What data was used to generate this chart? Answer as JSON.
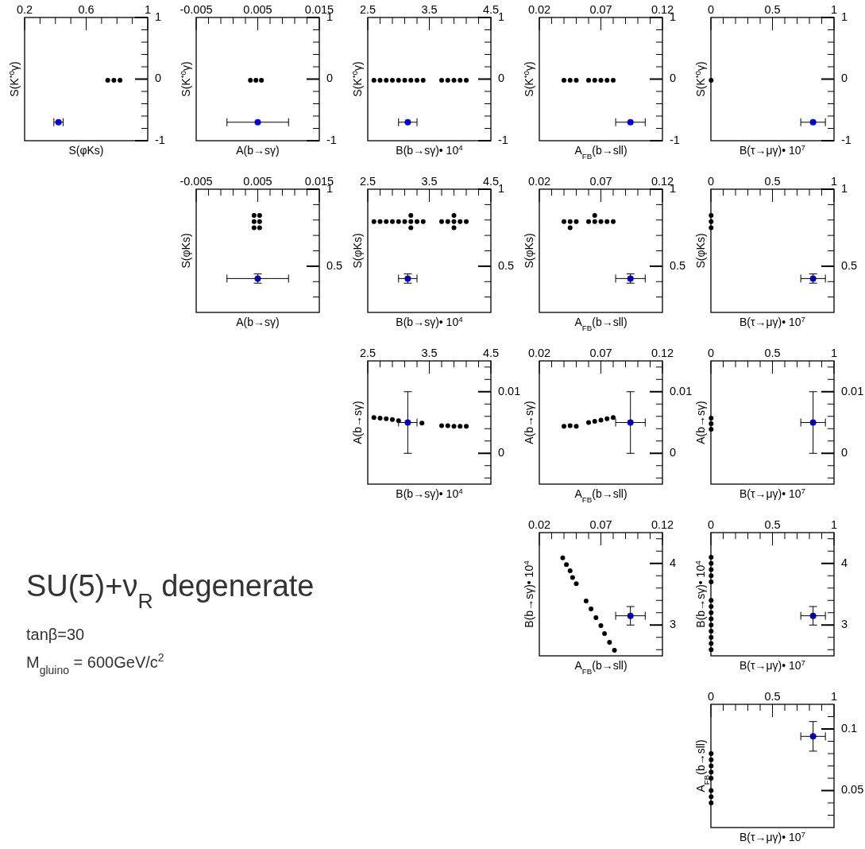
{
  "chart_data": [
    {
      "type": "scatter",
      "marker": "circle",
      "xlabel": "S(φKs)",
      "ylabel": "S(K$^{*0}$γ)",
      "xlim": [
        0.2,
        1
      ],
      "ylim": [
        -1,
        1
      ],
      "xticks": [
        0.2,
        {
          "value": 0.3,
          "label": null
        },
        {
          "value": 0.4,
          "label": null
        },
        {
          "value": 0.5,
          "label": null
        },
        0.6,
        {
          "value": 0.7,
          "label": null
        },
        {
          "value": 0.8,
          "label": null
        },
        {
          "value": 0.9,
          "label": null
        },
        1
      ],
      "yticks": [
        -1,
        {
          "value": -0.8,
          "label": null
        },
        {
          "value": -0.6,
          "label": null
        },
        {
          "value": -0.4,
          "label": null
        },
        {
          "value": -0.2,
          "label": null
        },
        0,
        {
          "value": 0.2,
          "label": null
        },
        {
          "value": 0.4,
          "label": null
        },
        {
          "value": 0.6,
          "label": null
        },
        {
          "value": 0.8,
          "label": null
        },
        1
      ],
      "series": [
        {
          "color": "#000000",
          "x": [
            0.74,
            0.78,
            0.82
          ],
          "values": [
            -0.02,
            -0.02,
            -0.02
          ]
        },
        {
          "color": "#0000ff",
          "x": [
            0.42
          ],
          "values": [
            -0.7
          ],
          "xerrors": [
            0.03
          ]
        }
      ]
    },
    {
      "type": "scatter",
      "marker": "circle",
      "xlabel": "A(b→sγ)",
      "ylabel": "S(K$^{*0}$γ)",
      "xlim": [
        -0.005,
        0.015
      ],
      "ylim": [
        -1,
        1
      ],
      "xticks": [
        -0.005,
        {
          "value": -0.003,
          "label": null
        },
        {
          "value": -0.001,
          "label": null
        },
        {
          "value": 0.001,
          "label": null
        },
        {
          "value": 0.003,
          "label": null
        },
        0.005,
        {
          "value": 0.007,
          "label": null
        },
        {
          "value": 0.009,
          "label": null
        },
        {
          "value": 0.011,
          "label": null
        },
        {
          "value": 0.013,
          "label": null
        },
        0.015
      ],
      "yticks": [
        -1,
        {
          "value": -0.8,
          "label": null
        },
        {
          "value": -0.6,
          "label": null
        },
        {
          "value": -0.4,
          "label": null
        },
        {
          "value": -0.2,
          "label": null
        },
        0,
        {
          "value": 0.2,
          "label": null
        },
        {
          "value": 0.4,
          "label": null
        },
        {
          "value": 0.6,
          "label": null
        },
        {
          "value": 0.8,
          "label": null
        },
        1
      ],
      "series": [
        {
          "color": "#000000",
          "x": [
            0.0038,
            0.0047,
            0.0056
          ],
          "values": [
            -0.02,
            -0.02,
            -0.02
          ]
        },
        {
          "color": "#0000ff",
          "x": [
            0.005
          ],
          "values": [
            -0.7
          ],
          "xerrors": [
            0.005
          ]
        }
      ]
    },
    {
      "type": "scatter",
      "marker": "circle",
      "xlabel": "B(b→sγ)• 10$^{4}$",
      "ylabel": "S(K$^{*0}$γ)",
      "xlim": [
        2.5,
        4.5
      ],
      "ylim": [
        -1,
        1
      ],
      "xticks": [
        2.5,
        {
          "value": 2.7,
          "label": null
        },
        {
          "value": 2.9,
          "label": null
        },
        {
          "value": 3.1,
          "label": null
        },
        {
          "value": 3.3,
          "label": null
        },
        3.5,
        {
          "value": 3.7,
          "label": null
        },
        {
          "value": 3.9,
          "label": null
        },
        {
          "value": 4.1,
          "label": null
        },
        {
          "value": 4.3,
          "label": null
        },
        4.5
      ],
      "yticks": [
        -1,
        {
          "value": -0.8,
          "label": null
        },
        {
          "value": -0.6,
          "label": null
        },
        {
          "value": -0.4,
          "label": null
        },
        {
          "value": -0.2,
          "label": null
        },
        0,
        {
          "value": 0.2,
          "label": null
        },
        {
          "value": 0.4,
          "label": null
        },
        {
          "value": 0.6,
          "label": null
        },
        {
          "value": 0.8,
          "label": null
        },
        1
      ],
      "series": [
        {
          "color": "#000000",
          "x": [
            2.6,
            2.7,
            2.8,
            2.9,
            3,
            3.1,
            3.2,
            3.3,
            3.4,
            3.7,
            3.8,
            3.9,
            4,
            4.1
          ],
          "values": [
            -0.02,
            -0.02,
            -0.02,
            -0.02,
            -0.02,
            -0.02,
            -0.02,
            -0.02,
            -0.02,
            -0.02,
            -0.02,
            -0.02,
            -0.02,
            -0.02
          ]
        },
        {
          "color": "#0000ff",
          "x": [
            3.15
          ],
          "values": [
            -0.7
          ],
          "xerrors": [
            0.15
          ]
        }
      ]
    },
    {
      "type": "scatter",
      "marker": "circle",
      "xlabel": "A$_{FB}$(b→sll)",
      "ylabel": "S(K$^{*0}$γ)",
      "xlim": [
        0.02,
        0.12
      ],
      "ylim": [
        -1,
        1
      ],
      "xticks": [
        0.02,
        {
          "value": 0.03,
          "label": null
        },
        {
          "value": 0.04,
          "label": null
        },
        {
          "value": 0.05,
          "label": null
        },
        {
          "value": 0.06,
          "label": null
        },
        0.07,
        {
          "value": 0.08,
          "label": null
        },
        {
          "value": 0.09,
          "label": null
        },
        {
          "value": 0.1,
          "label": null
        },
        {
          "value": 0.11,
          "label": null
        },
        0.12
      ],
      "yticks": [
        -1,
        {
          "value": -0.8,
          "label": null
        },
        {
          "value": -0.6,
          "label": null
        },
        {
          "value": -0.4,
          "label": null
        },
        {
          "value": -0.2,
          "label": null
        },
        0,
        {
          "value": 0.2,
          "label": null
        },
        {
          "value": 0.4,
          "label": null
        },
        {
          "value": 0.6,
          "label": null
        },
        {
          "value": 0.8,
          "label": null
        },
        1
      ],
      "series": [
        {
          "color": "#000000",
          "x": [
            0.04,
            0.045,
            0.05,
            0.06,
            0.065,
            0.07,
            0.075,
            0.08
          ],
          "values": [
            -0.02,
            -0.02,
            -0.02,
            -0.02,
            -0.02,
            -0.02,
            -0.02,
            -0.02
          ]
        },
        {
          "color": "#0000ff",
          "x": [
            0.094
          ],
          "values": [
            -0.7
          ],
          "xerrors": [
            0.012
          ]
        }
      ]
    },
    {
      "type": "scatter",
      "marker": "circle",
      "xlabel": "B(τ→μγ)• 10$^{7}$",
      "ylabel": "S(K$^{*0}$γ)",
      "xlim": [
        0,
        1
      ],
      "ylim": [
        -1,
        1
      ],
      "xticks": [
        0,
        {
          "value": 0.1,
          "label": null
        },
        {
          "value": 0.2,
          "label": null
        },
        {
          "value": 0.3,
          "label": null
        },
        {
          "value": 0.4,
          "label": null
        },
        0.5,
        {
          "value": 0.6,
          "label": null
        },
        {
          "value": 0.7,
          "label": null
        },
        {
          "value": 0.8,
          "label": null
        },
        {
          "value": 0.9,
          "label": null
        },
        1
      ],
      "yticks": [
        -1,
        {
          "value": -0.8,
          "label": null
        },
        {
          "value": -0.6,
          "label": null
        },
        {
          "value": -0.4,
          "label": null
        },
        {
          "value": -0.2,
          "label": null
        },
        0,
        {
          "value": 0.2,
          "label": null
        },
        {
          "value": 0.4,
          "label": null
        },
        {
          "value": 0.6,
          "label": null
        },
        {
          "value": 0.8,
          "label": null
        },
        1
      ],
      "series": [
        {
          "color": "#000000",
          "x": [
            0.002
          ],
          "values": [
            -0.02
          ]
        },
        {
          "color": "#0000ff",
          "x": [
            0.83
          ],
          "values": [
            -0.7
          ],
          "xerrors": [
            0.1
          ]
        }
      ]
    },
    {
      "type": "scatter",
      "marker": "circle",
      "xlabel": "A(b→sγ)",
      "ylabel": "S(φKs)",
      "xlim": [
        -0.005,
        0.015
      ],
      "ylim": [
        0.2,
        1
      ],
      "xticks": [
        -0.005,
        {
          "value": -0.003,
          "label": null
        },
        {
          "value": -0.001,
          "label": null
        },
        {
          "value": 0.001,
          "label": null
        },
        {
          "value": 0.003,
          "label": null
        },
        0.005,
        {
          "value": 0.007,
          "label": null
        },
        {
          "value": 0.009,
          "label": null
        },
        {
          "value": 0.011,
          "label": null
        },
        {
          "value": 0.013,
          "label": null
        },
        0.015
      ],
      "yticks": [
        {
          "value": 0.3,
          "label": null
        },
        {
          "value": 0.4,
          "label": null
        },
        0.5,
        {
          "value": 0.6,
          "label": null
        },
        {
          "value": 0.7,
          "label": null
        },
        {
          "value": 0.8,
          "label": null
        },
        {
          "value": 0.9,
          "label": null
        },
        1
      ],
      "series": [
        {
          "color": "#000000",
          "x": [
            0.0044,
            0.0053,
            0.0044,
            0.0053,
            0.0044,
            0.0053
          ],
          "values": [
            0.75,
            0.75,
            0.79,
            0.79,
            0.83,
            0.83
          ]
        },
        {
          "color": "#0000ff",
          "x": [
            0.005
          ],
          "values": [
            0.42
          ],
          "xerrors": [
            0.005
          ],
          "errors": [
            0.03
          ]
        }
      ]
    },
    {
      "type": "scatter",
      "marker": "circle",
      "xlabel": "B(b→sγ)• 10$^{4}$",
      "ylabel": "S(φKs)",
      "xlim": [
        2.5,
        4.5
      ],
      "ylim": [
        0.2,
        1
      ],
      "xticks": [
        2.5,
        {
          "value": 2.7,
          "label": null
        },
        {
          "value": 2.9,
          "label": null
        },
        {
          "value": 3.1,
          "label": null
        },
        {
          "value": 3.3,
          "label": null
        },
        3.5,
        {
          "value": 3.7,
          "label": null
        },
        {
          "value": 3.9,
          "label": null
        },
        {
          "value": 4.1,
          "label": null
        },
        {
          "value": 4.3,
          "label": null
        },
        4.5
      ],
      "yticks": [
        {
          "value": 0.3,
          "label": null
        },
        {
          "value": 0.4,
          "label": null
        },
        0.5,
        {
          "value": 0.6,
          "label": null
        },
        {
          "value": 0.7,
          "label": null
        },
        {
          "value": 0.8,
          "label": null
        },
        {
          "value": 0.9,
          "label": null
        },
        1
      ],
      "series": [
        {
          "color": "#000000",
          "x": [
            2.6,
            2.7,
            2.8,
            2.9,
            3,
            3.1,
            3.2,
            3.3,
            3.4,
            3.7,
            3.8,
            3.9,
            4,
            4.1,
            3.2,
            3.2,
            3.9,
            3.9
          ],
          "values": [
            0.79,
            0.79,
            0.79,
            0.79,
            0.79,
            0.79,
            0.79,
            0.79,
            0.79,
            0.79,
            0.79,
            0.79,
            0.79,
            0.79,
            0.75,
            0.83,
            0.75,
            0.83
          ]
        },
        {
          "color": "#0000ff",
          "x": [
            3.15
          ],
          "values": [
            0.42
          ],
          "xerrors": [
            0.15
          ],
          "errors": [
            0.03
          ]
        }
      ]
    },
    {
      "type": "scatter",
      "marker": "circle",
      "xlabel": "A$_{FB}$(b→sll)",
      "ylabel": "S(φKs)",
      "xlim": [
        0.02,
        0.12
      ],
      "ylim": [
        0.2,
        1
      ],
      "xticks": [
        0.02,
        {
          "value": 0.03,
          "label": null
        },
        {
          "value": 0.04,
          "label": null
        },
        {
          "value": 0.05,
          "label": null
        },
        {
          "value": 0.06,
          "label": null
        },
        0.07,
        {
          "value": 0.08,
          "label": null
        },
        {
          "value": 0.09,
          "label": null
        },
        {
          "value": 0.1,
          "label": null
        },
        {
          "value": 0.11,
          "label": null
        },
        0.12
      ],
      "yticks": [
        {
          "value": 0.3,
          "label": null
        },
        {
          "value": 0.4,
          "label": null
        },
        0.5,
        {
          "value": 0.6,
          "label": null
        },
        {
          "value": 0.7,
          "label": null
        },
        {
          "value": 0.8,
          "label": null
        },
        {
          "value": 0.9,
          "label": null
        },
        1
      ],
      "series": [
        {
          "color": "#000000",
          "x": [
            0.04,
            0.045,
            0.05,
            0.06,
            0.065,
            0.07,
            0.075,
            0.08,
            0.045,
            0.065
          ],
          "values": [
            0.79,
            0.79,
            0.79,
            0.79,
            0.79,
            0.79,
            0.79,
            0.79,
            0.75,
            0.83
          ]
        },
        {
          "color": "#0000ff",
          "x": [
            0.094
          ],
          "values": [
            0.42
          ],
          "xerrors": [
            0.012
          ],
          "errors": [
            0.03
          ]
        }
      ]
    },
    {
      "type": "scatter",
      "marker": "circle",
      "xlabel": "B(τ→μγ)• 10$^{7}$",
      "ylabel": "S(φKs)",
      "xlim": [
        0,
        1
      ],
      "ylim": [
        0.2,
        1
      ],
      "xticks": [
        0,
        {
          "value": 0.1,
          "label": null
        },
        {
          "value": 0.2,
          "label": null
        },
        {
          "value": 0.3,
          "label": null
        },
        {
          "value": 0.4,
          "label": null
        },
        0.5,
        {
          "value": 0.6,
          "label": null
        },
        {
          "value": 0.7,
          "label": null
        },
        {
          "value": 0.8,
          "label": null
        },
        {
          "value": 0.9,
          "label": null
        },
        1
      ],
      "yticks": [
        {
          "value": 0.3,
          "label": null
        },
        {
          "value": 0.4,
          "label": null
        },
        0.5,
        {
          "value": 0.6,
          "label": null
        },
        {
          "value": 0.7,
          "label": null
        },
        {
          "value": 0.8,
          "label": null
        },
        {
          "value": 0.9,
          "label": null
        },
        1
      ],
      "series": [
        {
          "color": "#000000",
          "x": [
            0.002,
            0.002,
            0.002
          ],
          "values": [
            0.75,
            0.79,
            0.83
          ]
        },
        {
          "color": "#0000ff",
          "x": [
            0.83
          ],
          "values": [
            0.42
          ],
          "xerrors": [
            0.1
          ],
          "errors": [
            0.03
          ]
        }
      ]
    },
    {
      "type": "scatter",
      "marker": "circle",
      "xlabel": "B(b→sγ)• 10$^{4}$",
      "ylabel": "A(b→sγ)",
      "xlim": [
        2.5,
        4.5
      ],
      "ylim": [
        -0.005,
        0.015
      ],
      "xticks": [
        2.5,
        {
          "value": 2.7,
          "label": null
        },
        {
          "value": 2.9,
          "label": null
        },
        {
          "value": 3.1,
          "label": null
        },
        {
          "value": 3.3,
          "label": null
        },
        3.5,
        {
          "value": 3.7,
          "label": null
        },
        {
          "value": 3.9,
          "label": null
        },
        {
          "value": 4.1,
          "label": null
        },
        {
          "value": 4.3,
          "label": null
        },
        4.5
      ],
      "yticks": [
        {
          "value": -0.004,
          "label": null
        },
        {
          "value": -0.002,
          "label": null
        },
        0,
        {
          "value": 0.002,
          "label": null
        },
        {
          "value": 0.004,
          "label": null
        },
        {
          "value": 0.006,
          "label": null
        },
        {
          "value": 0.008,
          "label": null
        },
        0.01,
        {
          "value": 0.012,
          "label": null
        },
        {
          "value": 0.014,
          "label": null
        }
      ],
      "series": [
        {
          "color": "#000000",
          "x": [
            2.6,
            2.7,
            2.8,
            2.9,
            3,
            3.38,
            3.7,
            3.8,
            3.9,
            4,
            4.1
          ],
          "values": [
            0.0058,
            0.0057,
            0.0056,
            0.0055,
            0.0053,
            0.0049,
            0.0045,
            0.0045,
            0.0044,
            0.0044,
            0.0044
          ]
        },
        {
          "color": "#0000ff",
          "x": [
            3.15
          ],
          "values": [
            0.005
          ],
          "xerrors": [
            0.15
          ],
          "errors": [
            0.005
          ]
        }
      ]
    },
    {
      "type": "scatter",
      "marker": "circle",
      "xlabel": "A$_{FB}$(b→sll)",
      "ylabel": "A(b→sγ)",
      "xlim": [
        0.02,
        0.12
      ],
      "ylim": [
        -0.005,
        0.015
      ],
      "xticks": [
        0.02,
        {
          "value": 0.03,
          "label": null
        },
        {
          "value": 0.04,
          "label": null
        },
        {
          "value": 0.05,
          "label": null
        },
        {
          "value": 0.06,
          "label": null
        },
        0.07,
        {
          "value": 0.08,
          "label": null
        },
        {
          "value": 0.09,
          "label": null
        },
        {
          "value": 0.1,
          "label": null
        },
        {
          "value": 0.11,
          "label": null
        },
        0.12
      ],
      "yticks": [
        {
          "value": -0.004,
          "label": null
        },
        {
          "value": -0.002,
          "label": null
        },
        0,
        {
          "value": 0.002,
          "label": null
        },
        {
          "value": 0.004,
          "label": null
        },
        {
          "value": 0.006,
          "label": null
        },
        {
          "value": 0.008,
          "label": null
        },
        0.01,
        {
          "value": 0.012,
          "label": null
        },
        {
          "value": 0.014,
          "label": null
        }
      ],
      "series": [
        {
          "color": "#000000",
          "x": [
            0.04,
            0.045,
            0.05,
            0.06,
            0.065,
            0.07,
            0.075,
            0.08
          ],
          "values": [
            0.0044,
            0.0045,
            0.0044,
            0.005,
            0.0052,
            0.0054,
            0.0056,
            0.0058
          ]
        },
        {
          "color": "#0000ff",
          "x": [
            0.094
          ],
          "values": [
            0.005
          ],
          "xerrors": [
            0.012
          ],
          "errors": [
            0.005
          ]
        }
      ]
    },
    {
      "type": "scatter",
      "marker": "circle",
      "xlabel": "B(τ→μγ)• 10$^{7}$",
      "ylabel": "A(b→sγ)",
      "xlim": [
        0,
        1
      ],
      "ylim": [
        -0.005,
        0.015
      ],
      "xticks": [
        0,
        {
          "value": 0.1,
          "label": null
        },
        {
          "value": 0.2,
          "label": null
        },
        {
          "value": 0.3,
          "label": null
        },
        {
          "value": 0.4,
          "label": null
        },
        0.5,
        {
          "value": 0.6,
          "label": null
        },
        {
          "value": 0.7,
          "label": null
        },
        {
          "value": 0.8,
          "label": null
        },
        {
          "value": 0.9,
          "label": null
        },
        1
      ],
      "yticks": [
        {
          "value": -0.004,
          "label": null
        },
        {
          "value": -0.002,
          "label": null
        },
        0,
        {
          "value": 0.002,
          "label": null
        },
        {
          "value": 0.004,
          "label": null
        },
        {
          "value": 0.006,
          "label": null
        },
        {
          "value": 0.008,
          "label": null
        },
        0.01,
        {
          "value": 0.012,
          "label": null
        },
        {
          "value": 0.014,
          "label": null
        }
      ],
      "series": [
        {
          "color": "#000000",
          "x": [
            0.002,
            0.002,
            0.002
          ],
          "values": [
            0.0039,
            0.0048,
            0.0057
          ]
        },
        {
          "color": "#0000ff",
          "x": [
            0.83
          ],
          "values": [
            0.005
          ],
          "xerrors": [
            0.1
          ],
          "errors": [
            0.005
          ]
        }
      ]
    },
    {
      "type": "scatter",
      "marker": "circle",
      "xlabel": "A$_{FB}$(b→sll)",
      "ylabel": "B(b→sγ)• 10$^{4}$",
      "xlim": [
        0.02,
        0.12
      ],
      "ylim": [
        2.5,
        4.5
      ],
      "xticks": [
        0.02,
        {
          "value": 0.03,
          "label": null
        },
        {
          "value": 0.04,
          "label": null
        },
        {
          "value": 0.05,
          "label": null
        },
        {
          "value": 0.06,
          "label": null
        },
        0.07,
        {
          "value": 0.08,
          "label": null
        },
        {
          "value": 0.09,
          "label": null
        },
        {
          "value": 0.1,
          "label": null
        },
        {
          "value": 0.11,
          "label": null
        },
        0.12
      ],
      "yticks": [
        {
          "value": 2.6,
          "label": null
        },
        {
          "value": 2.8,
          "label": null
        },
        3,
        {
          "value": 3.2,
          "label": null
        },
        {
          "value": 3.4,
          "label": null
        },
        {
          "value": 3.6,
          "label": null
        },
        {
          "value": 3.8,
          "label": null
        },
        4,
        {
          "value": 4.2,
          "label": null
        },
        {
          "value": 4.4,
          "label": null
        }
      ],
      "series": [
        {
          "color": "#000000",
          "x": [
            0.039,
            0.042,
            0.045,
            0.047,
            0.05,
            0.058,
            0.062,
            0.066,
            0.07,
            0.073,
            0.077,
            0.081
          ],
          "values": [
            4.09,
            3.98,
            3.88,
            3.77,
            3.67,
            3.39,
            3.26,
            3.12,
            2.99,
            2.86,
            2.72,
            2.59
          ]
        },
        {
          "color": "#0000ff",
          "x": [
            0.094
          ],
          "values": [
            3.15
          ],
          "xerrors": [
            0.012
          ],
          "errors": [
            0.15
          ]
        }
      ]
    },
    {
      "type": "scatter",
      "marker": "circle",
      "xlabel": "B(τ→μγ)• 10$^{7}$",
      "ylabel": "B(b→sγ)• 10$^{4}$",
      "xlim": [
        0,
        1
      ],
      "ylim": [
        2.5,
        4.5
      ],
      "xticks": [
        0,
        {
          "value": 0.1,
          "label": null
        },
        {
          "value": 0.2,
          "label": null
        },
        {
          "value": 0.3,
          "label": null
        },
        {
          "value": 0.4,
          "label": null
        },
        0.5,
        {
          "value": 0.6,
          "label": null
        },
        {
          "value": 0.7,
          "label": null
        },
        {
          "value": 0.8,
          "label": null
        },
        {
          "value": 0.9,
          "label": null
        },
        1
      ],
      "yticks": [
        {
          "value": 2.6,
          "label": null
        },
        {
          "value": 2.8,
          "label": null
        },
        3,
        {
          "value": 3.2,
          "label": null
        },
        {
          "value": 3.4,
          "label": null
        },
        {
          "value": 3.6,
          "label": null
        },
        {
          "value": 3.8,
          "label": null
        },
        4,
        {
          "value": 4.2,
          "label": null
        },
        {
          "value": 4.4,
          "label": null
        }
      ],
      "series": [
        {
          "color": "#000000",
          "x": [
            0.002,
            0.002,
            0.002,
            0.002,
            0.002,
            0.002,
            0.002,
            0.002,
            0.002,
            0.002,
            0.002,
            0.002,
            0.002,
            0.002
          ],
          "values": [
            2.6,
            2.7,
            2.8,
            2.9,
            3,
            3.1,
            3.2,
            3.3,
            3.4,
            3.7,
            3.8,
            3.9,
            4,
            4.1
          ]
        },
        {
          "color": "#0000ff",
          "x": [
            0.83
          ],
          "values": [
            3.15
          ],
          "xerrors": [
            0.1
          ],
          "errors": [
            0.15
          ]
        }
      ]
    },
    {
      "type": "scatter",
      "marker": "circle",
      "xlabel": "B(τ→μγ)• 10$^{7}$",
      "ylabel": "A$_{FB}$(b→sll)",
      "xlim": [
        0,
        1
      ],
      "ylim": [
        0.02,
        0.12
      ],
      "xticks": [
        0,
        {
          "value": 0.1,
          "label": null
        },
        {
          "value": 0.2,
          "label": null
        },
        {
          "value": 0.3,
          "label": null
        },
        {
          "value": 0.4,
          "label": null
        },
        0.5,
        {
          "value": 0.6,
          "label": null
        },
        {
          "value": 0.7,
          "label": null
        },
        {
          "value": 0.8,
          "label": null
        },
        {
          "value": 0.9,
          "label": null
        },
        1
      ],
      "yticks": [
        {
          "value": 0.03,
          "label": null
        },
        {
          "value": 0.04,
          "label": null
        },
        0.05,
        {
          "value": 0.06,
          "label": null
        },
        {
          "value": 0.07,
          "label": null
        },
        {
          "value": 0.08,
          "label": null
        },
        {
          "value": 0.09,
          "label": null
        },
        0.1,
        {
          "value": 0.11,
          "label": null
        }
      ],
      "series": [
        {
          "color": "#000000",
          "x": [
            0.002,
            0.002,
            0.002,
            0.002,
            0.002,
            0.002,
            0.002,
            0.002
          ],
          "values": [
            0.04,
            0.045,
            0.05,
            0.06,
            0.065,
            0.07,
            0.075,
            0.08
          ]
        },
        {
          "color": "#0000ff",
          "x": [
            0.83
          ],
          "values": [
            0.094
          ],
          "xerrors": [
            0.1
          ],
          "errors": [
            0.012
          ]
        }
      ]
    },
    {
      "type": "other",
      "title": "SU(5)+ν$_{R}$ degenerate",
      "annotations": [
        "tanβ=30",
        "M$_{gluino}$ = 600GeV/c$^{2}$"
      ]
    }
  ]
}
